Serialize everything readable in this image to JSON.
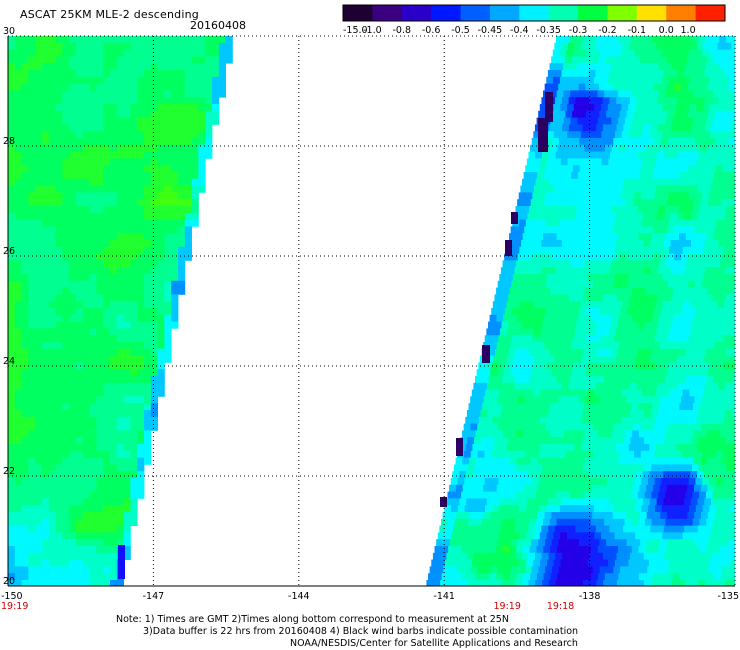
{
  "header": {
    "title": "ASCAT 25KM MLE-2 descending",
    "date": "20160408"
  },
  "colorbar": {
    "tick_labels": [
      "-15.0",
      "-1.0",
      "-0.8",
      "-0.6",
      "-0.5",
      "-0.45",
      "-0.4",
      "-0.35",
      "-0.3",
      "-0.2",
      "-0.1",
      "0.0",
      "1.0"
    ],
    "colors": [
      "#1e0033",
      "#3a0080",
      "#2a00c8",
      "#0018ff",
      "#0060ff",
      "#00a8ff",
      "#00f0ff",
      "#00ffb0",
      "#00ff40",
      "#80ff00",
      "#ffe000",
      "#ff8000",
      "#ff2000"
    ]
  },
  "map": {
    "x_ticks": [
      "-150",
      "-147",
      "-144",
      "-141",
      "-138",
      "-135"
    ],
    "x_tick_values": [
      -150,
      -147,
      -144,
      -141,
      -138,
      -135
    ],
    "y_ticks": [
      "30",
      "28",
      "26",
      "24",
      "22",
      "20"
    ],
    "y_tick_values": [
      30,
      28,
      26,
      24,
      22,
      20
    ],
    "time_labels": [
      {
        "text": "19:19",
        "lon": -150
      },
      {
        "text": "19:19",
        "lon": -139.7
      },
      {
        "text": "19:18",
        "lon": -138.6
      }
    ],
    "time_color": "#d40000"
  },
  "notes": {
    "line1": "Note: 1) Times are GMT 2)Times along bottom correspond to measurement at 25N",
    "line2": "3)Data buffer is 22 hrs from 20160408 4) Black wind barbs indicate possible contamination",
    "line3": "NOAA/NESDIS/Center for Satellite Applications and Research"
  }
}
